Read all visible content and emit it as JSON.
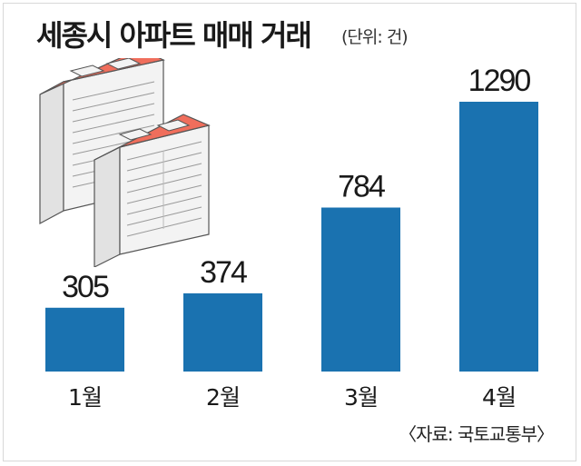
{
  "header": {
    "title": "세종시 아파트 매매 거래",
    "unit": "(단위: 건)"
  },
  "footer": {
    "source": "〈자료: 국토교통부〉"
  },
  "colors": {
    "bar": "#1a72b0",
    "roof": "#f06e5c",
    "building_face": "#f3f3f3",
    "building_side": "#e2e2e2"
  },
  "chart_data": {
    "type": "bar",
    "categories": [
      "1월",
      "2월",
      "3월",
      "4월"
    ],
    "values": [
      305,
      374,
      784,
      1290
    ],
    "title": "세종시 아파트 매매 거래",
    "xlabel": "",
    "ylabel": "",
    "ylim": [
      0,
      1290
    ],
    "grid": false,
    "legend": "none"
  }
}
